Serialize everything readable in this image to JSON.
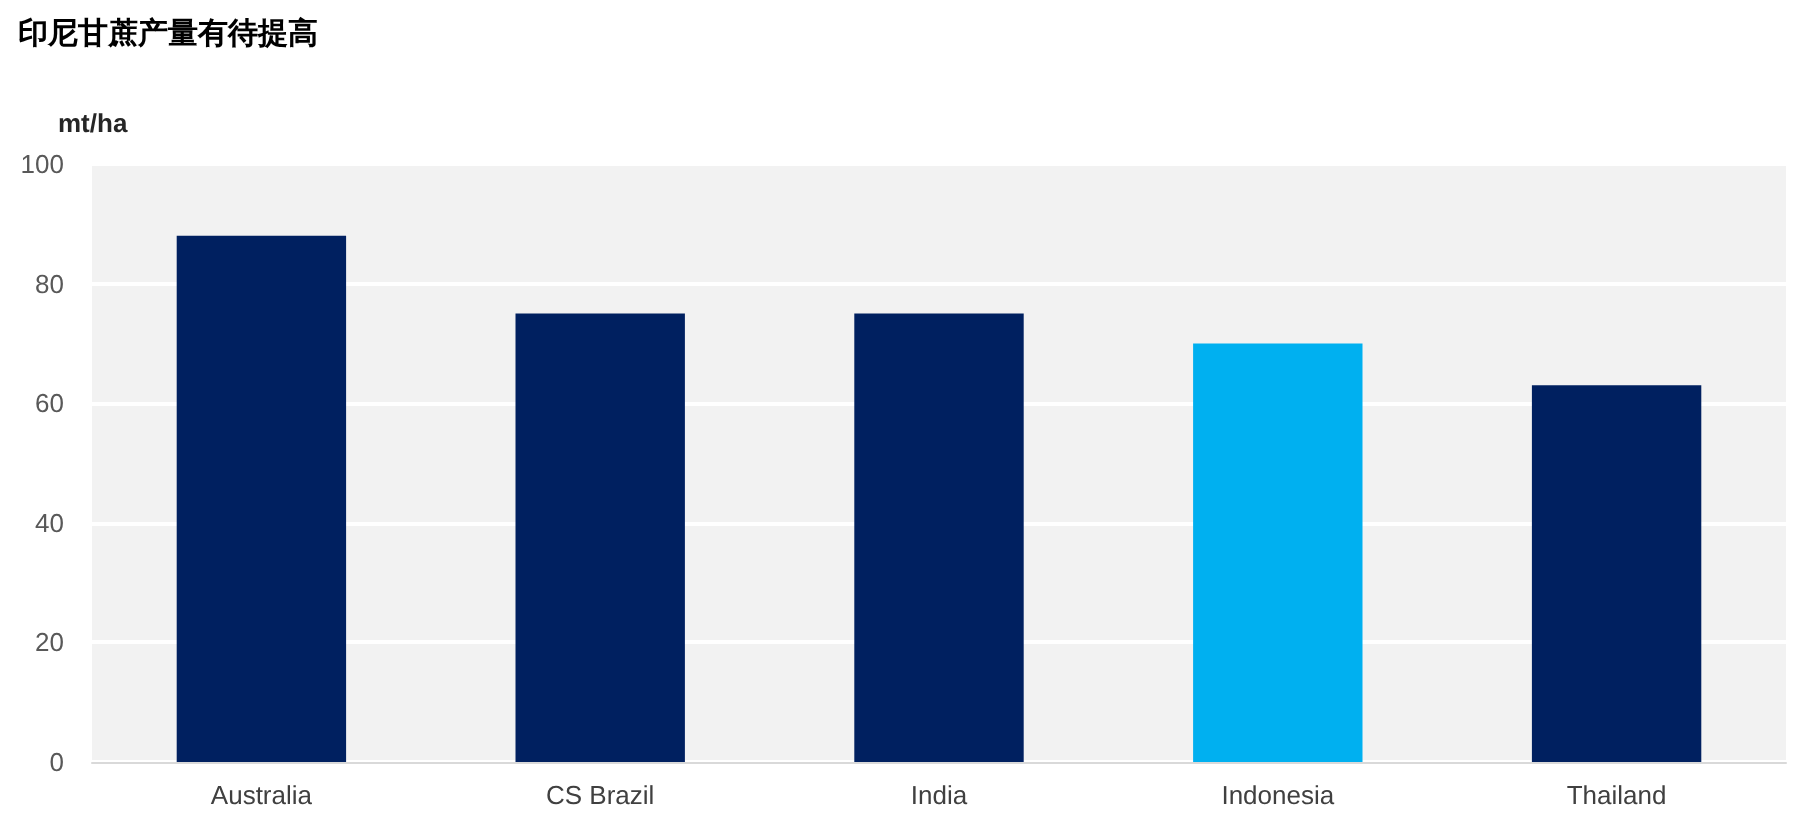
{
  "chart_data": {
    "type": "bar",
    "title": "印尼甘蔗产量有待提高",
    "ylabel": "mt/ha",
    "categories": [
      "Australia",
      "CS Brazil",
      "India",
      "Indonesia",
      "Thailand"
    ],
    "values": [
      88,
      75,
      75,
      70,
      63
    ],
    "colors": [
      "#002060",
      "#002060",
      "#002060",
      "#00b0f0",
      "#002060"
    ],
    "ylim": [
      0,
      100
    ],
    "yticks": [
      0,
      20,
      40,
      60,
      80,
      100
    ],
    "grid": "y"
  }
}
